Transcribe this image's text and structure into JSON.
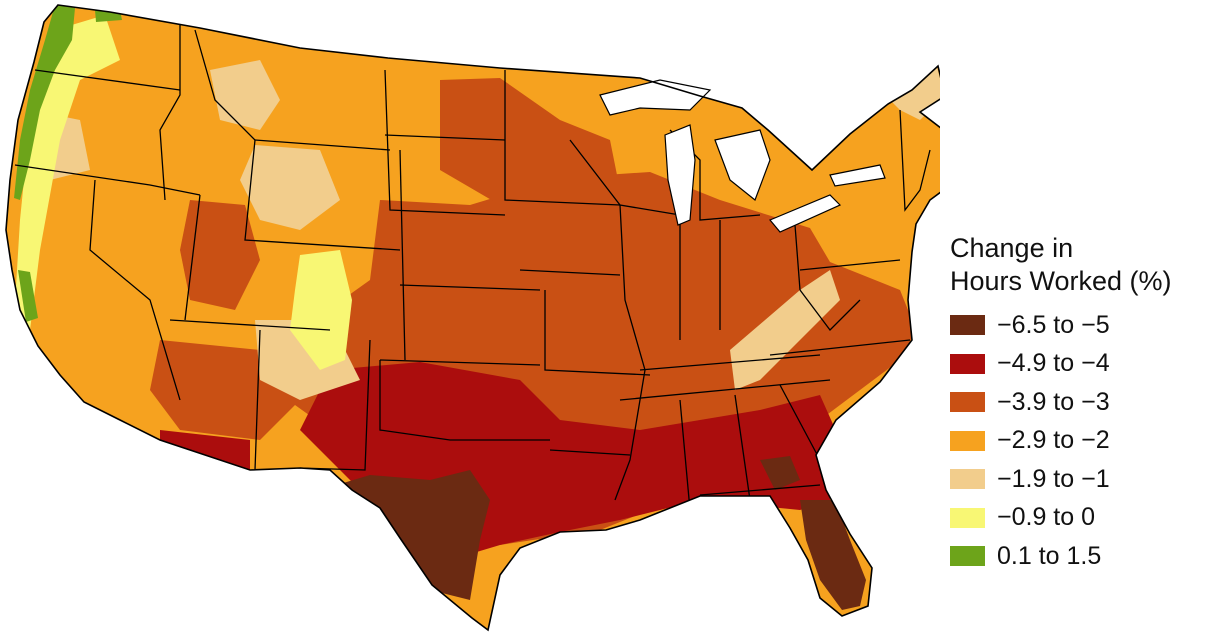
{
  "legend": {
    "title_line1": "Change in",
    "title_line2": "Hours Worked (%)",
    "items": [
      {
        "label": "−6.5 to −5",
        "color": "#6b2a12"
      },
      {
        "label": "−4.9 to −4",
        "color": "#ab0d0d"
      },
      {
        "label": "−3.9 to −3",
        "color": "#c95014"
      },
      {
        "label": "−2.9 to −2",
        "color": "#f6a21f"
      },
      {
        "label": "−1.9 to −1",
        "color": "#f2cd8c"
      },
      {
        "label": "−0.9 to 0",
        "color": "#f8f774"
      },
      {
        "label": "0.1 to 1.5",
        "color": "#6da41a"
      }
    ]
  },
  "map": {
    "region": "contiguous-united-states",
    "unit": "county",
    "boundary_color": "#000000"
  }
}
